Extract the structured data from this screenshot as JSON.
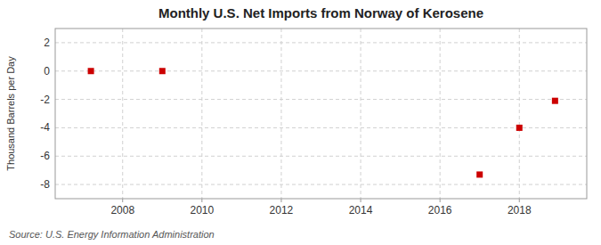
{
  "chart_data": {
    "type": "scatter",
    "title": "Monthly U.S. Net Imports from Norway of Kerosene",
    "y_label": "Thousand Barrels per Day",
    "annotations": [
      "Source: U.S. Energy Information Administration"
    ],
    "x": [
      2007.2,
      2009.0,
      2017.0,
      2018.0,
      2018.9
    ],
    "values": [
      0,
      0,
      -7.3,
      -4.0,
      -2.1
    ],
    "color": "#cc0000",
    "marker": "square",
    "xlim": [
      2006.3,
      2019.7
    ],
    "xticks": [
      2008,
      2010,
      2012,
      2014,
      2016,
      2018
    ],
    "ylim": [
      -9,
      3
    ],
    "yticks": [
      -8,
      -6,
      -4,
      -2,
      0,
      2
    ],
    "grid": true
  }
}
